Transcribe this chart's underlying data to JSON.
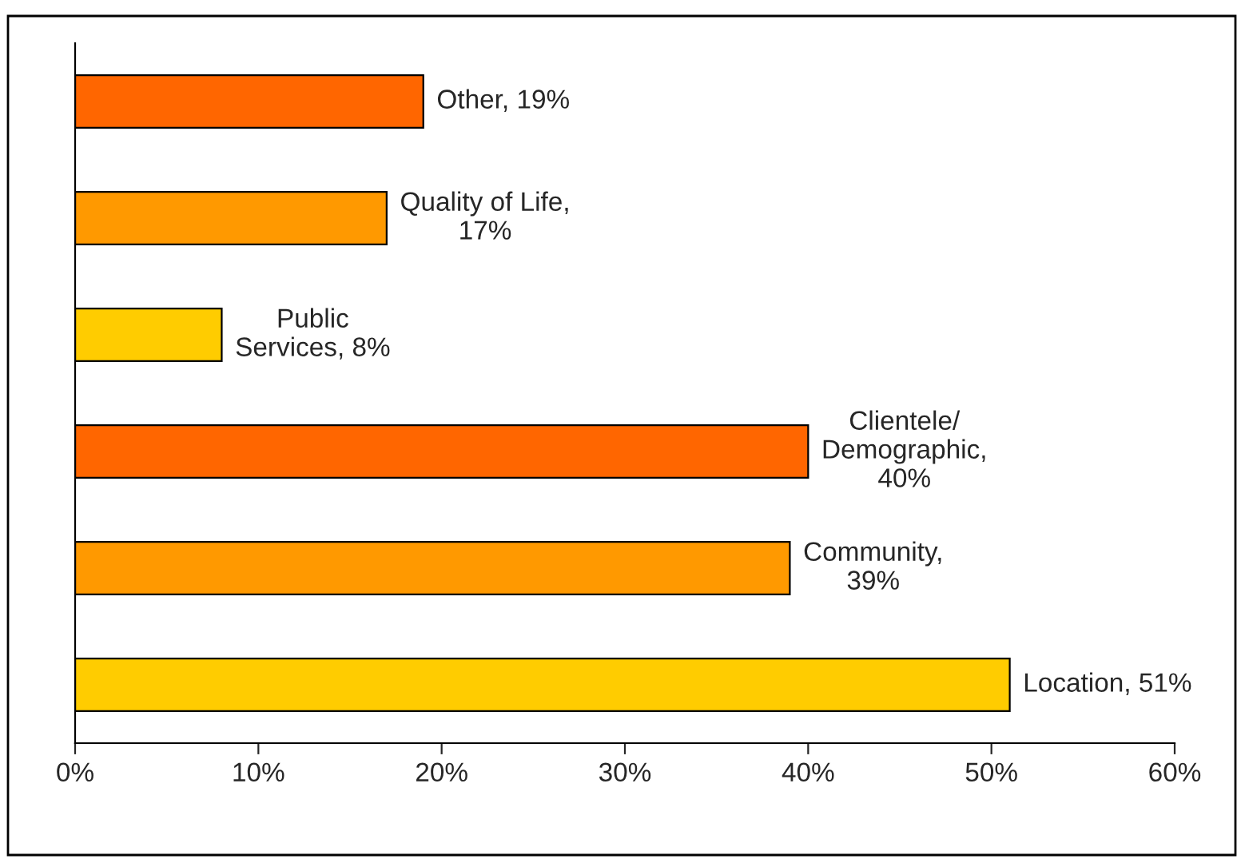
{
  "chart_data": {
    "type": "bar",
    "orientation": "horizontal",
    "categories": [
      null,
      null,
      null,
      null,
      null,
      null
    ],
    "values": [
      19,
      17,
      8,
      40,
      39,
      51
    ],
    "colors": [
      "#ff6600",
      "#ff9900",
      "#ffcc00",
      "#ff6600",
      "#ff9900",
      "#ffcc00"
    ],
    "value_labels": [
      "Other, 19%",
      "Quality of Life,\n17%",
      "Public\nServices, 8%",
      "Clientele/\nDemographic,\n40%",
      "Community,\n39%",
      "Location, 51%"
    ],
    "xlim": [
      0,
      60
    ],
    "xticks": [
      {
        "value": 0,
        "label": "0%"
      },
      {
        "value": 10,
        "label": "10%"
      },
      {
        "value": 20,
        "label": "20%"
      },
      {
        "value": 30,
        "label": "30%"
      },
      {
        "value": 40,
        "label": "40%"
      },
      {
        "value": 50,
        "label": "50%"
      },
      {
        "value": 60,
        "label": "60%"
      }
    ],
    "tick_labels": "x",
    "grid": false,
    "legend": false
  }
}
